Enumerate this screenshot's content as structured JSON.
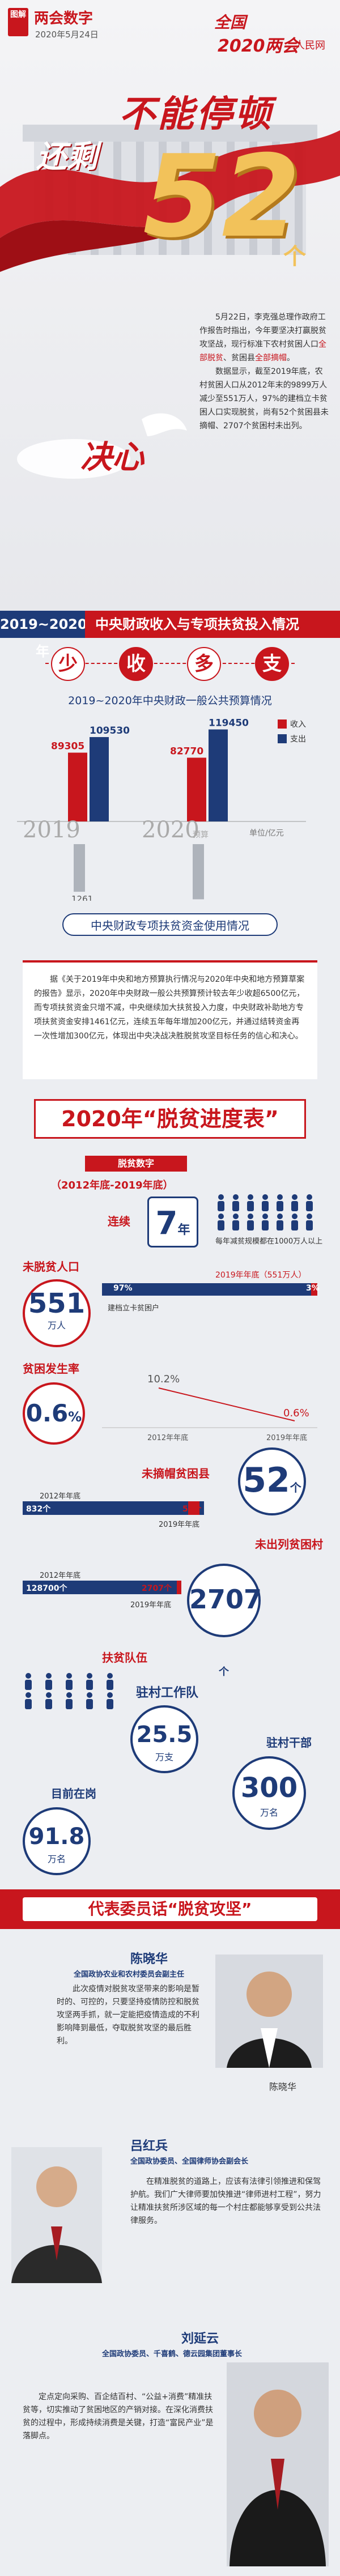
{
  "header": {
    "tag": "图解",
    "brand": "两会数字",
    "date": "2020年5月24日",
    "logo_line1": "全国",
    "logo_line2": "2020两会",
    "logo_paper": "人民网",
    "headline1": "不能停顿",
    "headline2": "还剩",
    "big_number": "52",
    "unit": "个",
    "intro_p1_pre": "5月22日，李克强总理作政府工作报告时指出，今年要坚决打赢脱贫攻坚战，现行标准下农村贫困人口",
    "intro_p1_hl": "全部脱贫",
    "intro_p1_mid": "、贫困县",
    "intro_p1_hl2": "全部摘帽",
    "intro_p1_end": "。",
    "intro_p2": "数据显示，截至2019年底，农村贫困人口从2012年末的9899万人减少至551万人，97%的建档立卡贫困人口实现脱贫，尚有52个贫困县未摘帽、2707个贫困村未出列。",
    "resolve": "决心"
  },
  "section1": {
    "left": "2019~2020年",
    "right": "中央财政收入与专项扶贫投入情况",
    "chips": [
      "少",
      "收",
      "多",
      "支"
    ],
    "chart_title": "2019~2020年中央财政一般公共预算情况",
    "legend_income": "收入",
    "legend_expense": "支出",
    "unit_label": "单位/亿元",
    "year_2019": "2019",
    "year_2020": "2020",
    "year_suffix": "预算",
    "fund_title": "中央财政专项扶贫资金使用情况",
    "paragraph": "据《关于2019年中央和地方预算执行情况与2020年中央和地方预算草案的报告》显示，2020年中央财政一般公共预算预计较去年少收超6500亿元，而专项扶贫资金只增不减，中央继续加大扶贫投入力度，中央财政补助地方专项扶贫资金安排1461亿元，连续五年每年增加200亿元，并通过结转资金再一次性增加300亿元，体现出中央决战决胜脱贫攻坚目标任务的信心和决心。"
  },
  "chart_data": {
    "type": "bar",
    "title": "2019~2020年中央财政一般公共预算情况",
    "categories": [
      "2019",
      "2020预算"
    ],
    "series": [
      {
        "name": "收入",
        "values": [
          89305,
          82770
        ]
      },
      {
        "name": "支出",
        "values": [
          109530,
          119450
        ]
      }
    ],
    "below_axis": [
      {
        "category": "2019",
        "value": 1261
      },
      {
        "category": "2020预算",
        "value": 1461
      }
    ],
    "ylabel": "单位/亿元",
    "ylim": [
      0,
      125000
    ],
    "colors": {
      "收入": "#c8161d",
      "支出": "#1e3b78"
    }
  },
  "section2": {
    "banner": "2020年“脱贫进度表”",
    "digits_title": "脱贫数字",
    "digits_sub": "（2012年底-2019年底）",
    "streak_label": "连续",
    "streak_value": "7",
    "streak_unit": "年",
    "streak_note": "每年减贫规模都在1000万人以上",
    "poor_label": "未脱贫人口",
    "poor_value": "551",
    "poor_unit": "万人",
    "poor_bar_label": "2019年年底（551万人）",
    "poor_pct_97": "97%",
    "poor_pct_3": "3%",
    "poor_bar_note": "建档立卡贫困户",
    "poor_pct_97_value": 97,
    "incidence_label": "贫困发生率",
    "incidence_value": "0.6",
    "incidence_unit": "%",
    "inc_2012": "10.2%",
    "inc_2019": "0.6%",
    "inc_2012_label": "2012年年底",
    "inc_2019_label": "2019年年底",
    "county_label": "未摘帽贫困县",
    "county_value": "52",
    "county_unit": "个",
    "county_2012_label": "2012年年底",
    "county_2012": "832个",
    "county_2019": "52个",
    "county_2019_label": "2019年年底",
    "county_2012_value": 832,
    "county_2019_value": 52,
    "village_label": "未出列贫困村",
    "village_value": "2707",
    "village_unit": "个",
    "village_2012_label": "2012年年底",
    "village_2012": "128700个",
    "village_2019": "2707个",
    "village_2019_label": "2019年年底",
    "village_2012_value": 128700,
    "village_2019_value": 2707,
    "team_label": "扶贫队伍",
    "team_work_label": "驻村工作队",
    "team_work_value": "25.5",
    "team_work_unit": "万支",
    "cadre_label": "驻村干部",
    "cadre_value": "300",
    "cadre_unit": "万名",
    "active_label": "目前在岗",
    "active_value": "91.8",
    "active_unit": "万名"
  },
  "section3": {
    "header": "代表委员话“脱贫攻坚”",
    "reps": [
      {
        "name": "陈晓华",
        "title": "全国政协农业和农村委员会副主任",
        "text": "此次疫情对脱贫攻坚带来的影响是暂时的、可控的，只要坚持疫情防控和脱贫攻坚两手抓，就一定能把疫情造成的不利影响降到最低，夺取脱贫攻坚的最后胜利。",
        "caption": "陈晓华"
      },
      {
        "name": "吕红兵",
        "title": "全国政协委员、全国律师协会副会长",
        "text": "在精准脱贫的道路上，应该有法律引领推进和保驾护航。我们广大律师要加快推进“律师进村工程”，努力让精准扶贫所涉区域的每一个村庄都能够享受到公共法律服务。"
      },
      {
        "name": "刘延云",
        "title": "全国政协委员、千喜鹤、德云园集团董事长",
        "text": "定点定向采购、百企结百村、“公益+消费”精准扶贫等，切实推动了贫困地区的产销对接。在深化消费扶贫的过程中，形成持续消费是关键，打造“富民产业”是落脚点。"
      }
    ]
  }
}
